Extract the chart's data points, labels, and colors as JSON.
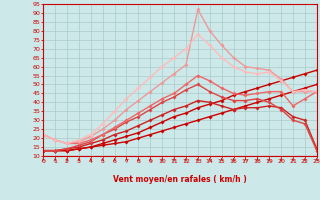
{
  "xlabel": "Vent moyen/en rafales ( km/h )",
  "xlim": [
    0,
    23
  ],
  "ylim": [
    10,
    95
  ],
  "yticks": [
    10,
    15,
    20,
    25,
    30,
    35,
    40,
    45,
    50,
    55,
    60,
    65,
    70,
    75,
    80,
    85,
    90,
    95
  ],
  "xticks": [
    0,
    1,
    2,
    3,
    4,
    5,
    6,
    7,
    8,
    9,
    10,
    11,
    12,
    13,
    14,
    15,
    16,
    17,
    18,
    19,
    20,
    21,
    22,
    23
  ],
  "background_color": "#cce8e8",
  "grid_color": "#aacccc",
  "lines": [
    {
      "x": [
        0,
        1,
        2,
        3,
        4,
        5,
        6,
        7,
        8,
        9,
        10,
        11,
        12,
        13,
        14,
        15,
        16,
        17,
        18,
        19,
        20,
        21,
        22,
        23
      ],
      "y": [
        13,
        13,
        13,
        14,
        15,
        16,
        17,
        18,
        20,
        22,
        24,
        26,
        28,
        30,
        32,
        34,
        36,
        38,
        40,
        42,
        44,
        46,
        48,
        50
      ],
      "color": "#cc0000",
      "linewidth": 1.0,
      "marker": "D",
      "markersize": 1.8
    },
    {
      "x": [
        0,
        1,
        2,
        3,
        4,
        5,
        6,
        7,
        8,
        9,
        10,
        11,
        12,
        13,
        14,
        15,
        16,
        17,
        18,
        19,
        20,
        21,
        22,
        23
      ],
      "y": [
        13,
        13,
        13,
        14,
        15,
        17,
        19,
        21,
        23,
        26,
        29,
        32,
        34,
        37,
        39,
        41,
        44,
        46,
        48,
        50,
        52,
        54,
        56,
        58
      ],
      "color": "#cc0000",
      "linewidth": 1.0,
      "marker": "D",
      "markersize": 1.8
    },
    {
      "x": [
        0,
        1,
        2,
        3,
        4,
        5,
        6,
        7,
        8,
        9,
        10,
        11,
        12,
        13,
        14,
        15,
        16,
        17,
        18,
        19,
        20,
        21,
        22,
        23
      ],
      "y": [
        13,
        13,
        14,
        15,
        17,
        19,
        22,
        24,
        27,
        30,
        33,
        36,
        38,
        41,
        40,
        38,
        36,
        37,
        37,
        38,
        37,
        32,
        30,
        14
      ],
      "color": "#cc2222",
      "linewidth": 1.0,
      "marker": "D",
      "markersize": 1.8
    },
    {
      "x": [
        0,
        1,
        2,
        3,
        4,
        5,
        6,
        7,
        8,
        9,
        10,
        11,
        12,
        13,
        14,
        15,
        16,
        17,
        18,
        19,
        20,
        21,
        22,
        23
      ],
      "y": [
        13,
        13,
        14,
        16,
        18,
        22,
        25,
        29,
        32,
        36,
        40,
        43,
        47,
        50,
        46,
        43,
        41,
        41,
        42,
        40,
        36,
        30,
        28,
        13
      ],
      "color": "#dd4444",
      "linewidth": 1.0,
      "marker": "D",
      "markersize": 1.8
    },
    {
      "x": [
        0,
        1,
        2,
        3,
        4,
        5,
        6,
        7,
        8,
        9,
        10,
        11,
        12,
        13,
        14,
        15,
        16,
        17,
        18,
        19,
        20,
        21,
        22,
        23
      ],
      "y": [
        22,
        19,
        17,
        17,
        19,
        22,
        26,
        30,
        34,
        38,
        42,
        45,
        50,
        55,
        52,
        48,
        45,
        44,
        45,
        46,
        46,
        38,
        42,
        46
      ],
      "color": "#ee6666",
      "linewidth": 1.0,
      "marker": "D",
      "markersize": 1.8
    },
    {
      "x": [
        0,
        1,
        2,
        3,
        4,
        5,
        6,
        7,
        8,
        9,
        10,
        11,
        12,
        13,
        14,
        15,
        16,
        17,
        18,
        19,
        20,
        21,
        22,
        23
      ],
      "y": [
        22,
        19,
        17,
        18,
        21,
        25,
        30,
        36,
        41,
        46,
        51,
        56,
        61,
        92,
        80,
        72,
        65,
        60,
        59,
        58,
        53,
        46,
        46,
        46
      ],
      "color": "#ee9999",
      "linewidth": 1.0,
      "marker": "D",
      "markersize": 1.8
    },
    {
      "x": [
        0,
        1,
        2,
        3,
        4,
        5,
        6,
        7,
        8,
        9,
        10,
        11,
        12,
        13,
        14,
        15,
        16,
        17,
        18,
        19,
        20,
        21,
        22,
        23
      ],
      "y": [
        22,
        19,
        17,
        19,
        22,
        28,
        35,
        42,
        48,
        54,
        60,
        65,
        70,
        78,
        72,
        65,
        60,
        57,
        56,
        57,
        52,
        46,
        47,
        46
      ],
      "color": "#ffbbbb",
      "linewidth": 1.0,
      "marker": "D",
      "markersize": 1.8
    }
  ],
  "arrow_color": "#cc0000",
  "axis_color": "#cc0000",
  "tick_color": "#cc0000",
  "xlabel_color": "#cc0000",
  "xlabel_fontsize": 5.5,
  "tick_fontsize": 4.5
}
